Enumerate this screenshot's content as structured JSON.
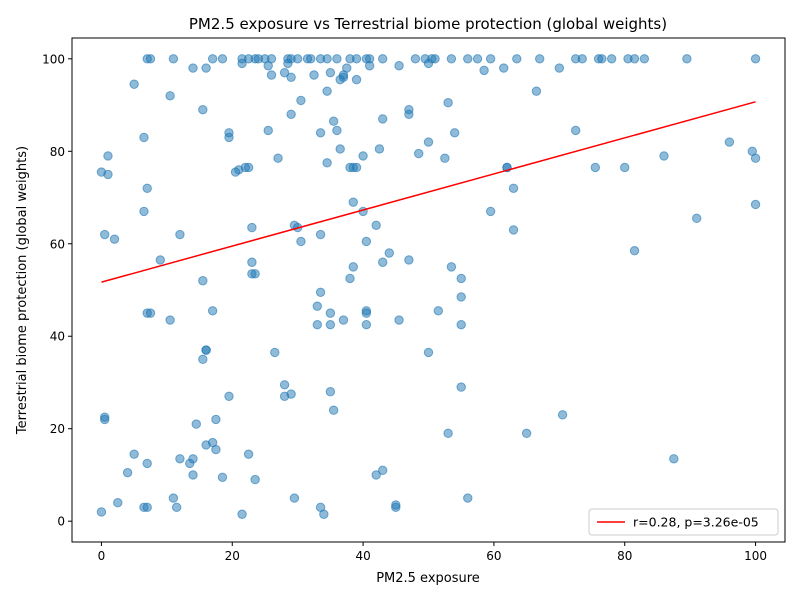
{
  "chart_data": {
    "type": "scatter",
    "title": "PM2.5 exposure vs Terrestrial biome protection (global weights)",
    "xlabel": "PM2.5 exposure",
    "ylabel": "Terrestrial biome protection (global weights)",
    "xlim": [
      -4.5,
      104.5
    ],
    "ylim": [
      -4.5,
      104.5
    ],
    "xticks": [
      0,
      20,
      40,
      60,
      80,
      100
    ],
    "yticks": [
      0,
      20,
      40,
      60,
      80,
      100
    ],
    "grid": false,
    "legend_position": "lower-right",
    "colors": {
      "points": "#1f77b4",
      "fit_line": "#ff0000"
    },
    "points": {
      "x": [
        7,
        7.5,
        11,
        17,
        18.5,
        21.5,
        22.5,
        23.5,
        24,
        25,
        26,
        28.5,
        29,
        30,
        31.5,
        32,
        33.5,
        34.5,
        36,
        38,
        39,
        40.5,
        41,
        43,
        48,
        49.5,
        50.5,
        51,
        53.5,
        56,
        57.5,
        59.5,
        63.5,
        67,
        72.5,
        73.5,
        76,
        76.5,
        78,
        80.5,
        81.5,
        83,
        89.5,
        100,
        5,
        14,
        16,
        21.5,
        25.5,
        26,
        28,
        28.5,
        29,
        32.5,
        35,
        37,
        36.5,
        37.5,
        39,
        45.5,
        50,
        58.5,
        61.5,
        66.5,
        70,
        10.5,
        15.5,
        34.5,
        30.5,
        29,
        41,
        47,
        53,
        96,
        35.5,
        36,
        37,
        43,
        47,
        54,
        50,
        52.5,
        1,
        6.5,
        19.5,
        19.5,
        25.5,
        33.5,
        36.5,
        40,
        42.5,
        48.5,
        72.5,
        86,
        99.5,
        21,
        20.5,
        27,
        22,
        22.5,
        38,
        38.5,
        39,
        34.5,
        75.5,
        80,
        100,
        0,
        1,
        7,
        38.5,
        40,
        42,
        62,
        62,
        63,
        63,
        6.5,
        29.5,
        30,
        40.5,
        30.5,
        44,
        23.5,
        43,
        91,
        100,
        59.5,
        33.5,
        23,
        0.5,
        2,
        9,
        12,
        23,
        33.5,
        38.5,
        47,
        53.5,
        55,
        81.5,
        15.5,
        23,
        35,
        38,
        55,
        17,
        40.5,
        33,
        45.5,
        51.5,
        7,
        7.5,
        10.5,
        35,
        55,
        33,
        37,
        40.5,
        16,
        16,
        26.5,
        50,
        15.5,
        19.5,
        28,
        28,
        29,
        35,
        35.5,
        55,
        70.5,
        0.5,
        16,
        17.5,
        14.5,
        17,
        65,
        53,
        0.5,
        14,
        17.5,
        22.5,
        5,
        7,
        13.5,
        12,
        4,
        14,
        18.5,
        23.5,
        11,
        43,
        45,
        42,
        0,
        6.5,
        2.5,
        7,
        11.5,
        29.5,
        56,
        34,
        21.5,
        45,
        33.5,
        40.5,
        87.5
      ],
      "y": [
        100,
        100,
        100,
        100,
        100,
        100,
        100,
        100,
        100,
        100,
        100,
        100,
        100,
        100,
        100,
        100,
        100,
        100,
        100,
        100,
        100,
        100,
        100,
        100,
        100,
        100,
        100,
        100,
        100,
        100,
        100,
        100,
        100,
        100,
        100,
        100,
        100,
        100,
        100,
        100,
        100,
        100,
        100,
        100,
        94.5,
        98,
        98,
        99,
        98.5,
        96.5,
        97,
        99,
        96,
        96.5,
        97,
        96.5,
        95.5,
        98,
        95.5,
        98.5,
        99,
        97.5,
        98,
        93,
        98,
        92,
        89,
        93,
        91,
        88,
        98.5,
        89,
        90.5,
        82,
        86.5,
        84.5,
        96,
        87,
        88,
        84,
        82,
        78.5,
        79,
        83,
        84,
        83,
        84.5,
        84,
        80.5,
        79,
        80.5,
        79.5,
        84.5,
        79,
        80,
        76,
        75.5,
        78.5,
        76.5,
        76.5,
        76.5,
        76.5,
        76.5,
        77.5,
        76.5,
        76.5,
        78.5,
        75.5,
        75,
        72,
        69,
        67,
        64,
        76.5,
        76.5,
        72,
        63,
        67,
        64,
        63.5,
        60.5,
        60.5,
        58,
        53.5,
        56,
        65.5,
        68.5,
        67,
        62,
        63.5,
        62,
        61,
        56.5,
        62,
        53.5,
        49.5,
        55,
        56.5,
        55,
        52.5,
        58.5,
        52,
        56,
        45,
        52.5,
        48.5,
        45.5,
        45.5,
        46.5,
        43.5,
        45.5,
        45,
        45,
        43.5,
        42.5,
        42.5,
        42.5,
        43.5,
        42.5,
        37,
        37,
        36.5,
        36.5,
        35,
        27,
        27,
        29.5,
        27.5,
        28,
        24,
        29,
        23,
        22.5,
        16.5,
        22,
        21,
        17,
        19,
        19,
        22,
        13.5,
        15.5,
        14.5,
        14.5,
        12.5,
        12.5,
        13.5,
        10.5,
        10,
        9.5,
        9,
        5,
        11,
        3.5,
        10,
        2,
        3,
        4,
        3,
        3,
        5,
        5,
        1.5,
        1.5,
        3,
        3,
        45,
        13.5
      ]
    },
    "fit": {
      "x": [
        0,
        100
      ],
      "y": [
        51.7,
        90.7
      ],
      "label": "r=0.28, p=3.26e-05"
    },
    "stats": {
      "r": 0.28,
      "p": 3.26e-05
    }
  }
}
